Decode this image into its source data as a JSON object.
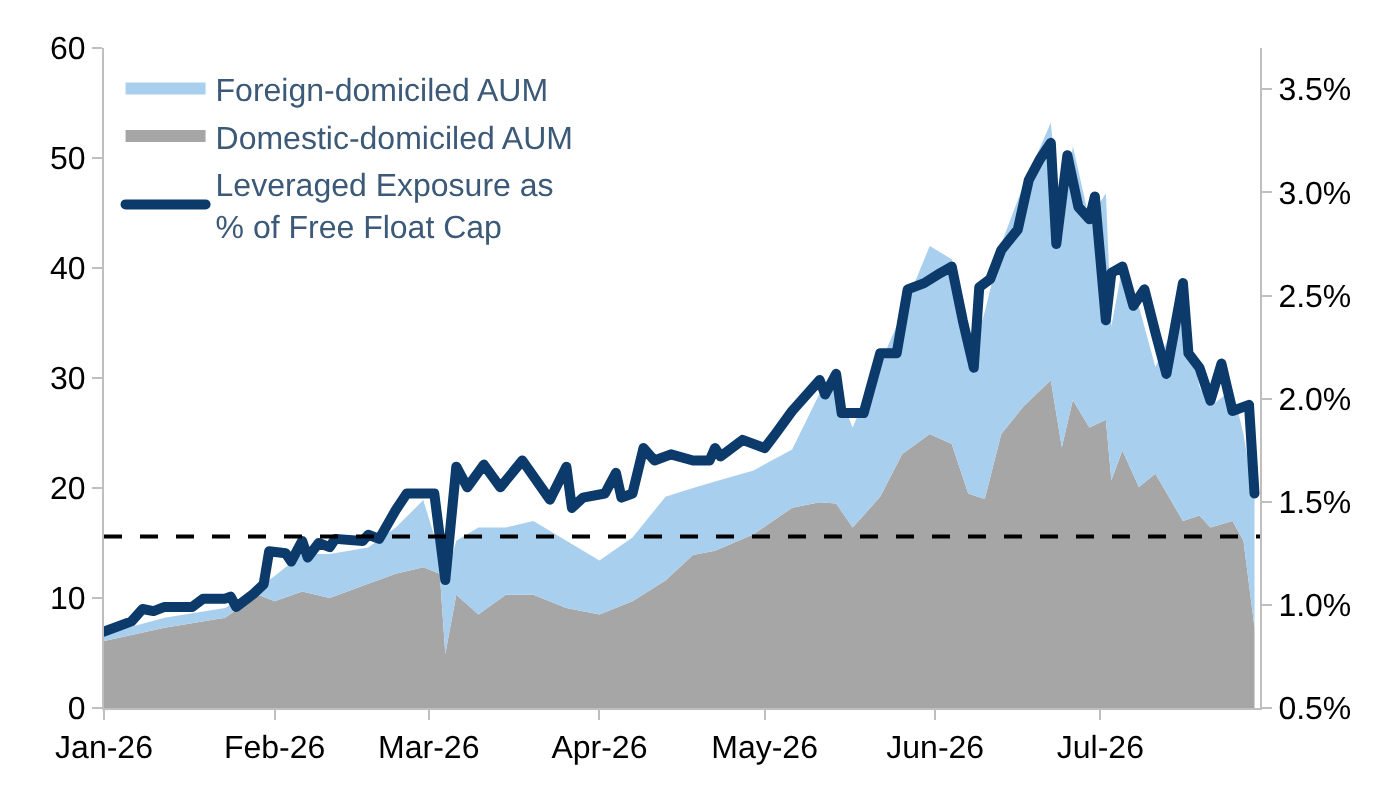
{
  "chart_data": {
    "type": "area",
    "stacked": true,
    "x": [
      "2026-01-01",
      "2026-01-12",
      "2026-01-23",
      "2026-01-29",
      "2026-02-01",
      "2026-02-06",
      "2026-02-11",
      "2026-02-18",
      "2026-02-23",
      "2026-02-28",
      "2026-03-03",
      "2026-03-04",
      "2026-03-06",
      "2026-03-10",
      "2026-03-15",
      "2026-03-20",
      "2026-03-26",
      "2026-04-01",
      "2026-04-07",
      "2026-04-13",
      "2026-04-18",
      "2026-04-22",
      "2026-04-29",
      "2026-05-06",
      "2026-05-11",
      "2026-05-14",
      "2026-05-17",
      "2026-05-22",
      "2026-05-26",
      "2026-05-31",
      "2026-06-04",
      "2026-06-07",
      "2026-06-10",
      "2026-06-13",
      "2026-06-17",
      "2026-06-22",
      "2026-06-24",
      "2026-06-26",
      "2026-06-29",
      "2026-07-02",
      "2026-07-03",
      "2026-07-05",
      "2026-07-08",
      "2026-07-11",
      "2026-07-16",
      "2026-07-19",
      "2026-07-21",
      "2026-07-25",
      "2026-07-27",
      "2026-07-29"
    ],
    "series": [
      {
        "name": "Domestic-domiciled AUM",
        "color": "#a6a6a6",
        "values": [
          6.1,
          7.3,
          8.2,
          10.3,
          9.7,
          10.6,
          10.0,
          11.3,
          12.2,
          12.8,
          12.2,
          4.9,
          10.3,
          8.5,
          10.3,
          10.3,
          9.1,
          8.5,
          9.7,
          11.6,
          13.9,
          14.3,
          15.8,
          18.2,
          18.7,
          18.6,
          16.4,
          19.2,
          23.1,
          24.9,
          24.0,
          19.5,
          19.0,
          24.9,
          27.4,
          29.8,
          23.7,
          28.0,
          25.5,
          26.2,
          20.7,
          23.4,
          20.1,
          21.3,
          17.0,
          17.5,
          16.4,
          17.0,
          15.2,
          7.3
        ]
      },
      {
        "name": "Foreign-domiciled AUM",
        "color": "#a9cfee",
        "values": [
          0.6,
          0.9,
          0.9,
          0.6,
          2.3,
          3.4,
          4.0,
          3.3,
          4.2,
          6.1,
          1.8,
          6.7,
          4.9,
          7.9,
          6.1,
          6.7,
          6.1,
          4.9,
          5.8,
          7.6,
          6.1,
          6.3,
          5.8,
          5.3,
          9.9,
          10.6,
          9.1,
          12.1,
          12.8,
          17.1,
          16.8,
          11.5,
          17.0,
          17.3,
          20.1,
          23.4,
          18.9,
          23.1,
          18.9,
          20.6,
          14.0,
          16.7,
          16.4,
          9.7,
          19.5,
          11.7,
          11.0,
          12.0,
          9.7,
          11.6
        ]
      },
      {
        "name": "Leveraged Exposure as\n% of Free Float Cap",
        "type": "line",
        "axis": "y2",
        "color": "#0b3a6b",
        "x": [
          "2026-01-01",
          "2026-01-06",
          "2026-01-08",
          "2026-01-10",
          "2026-01-12",
          "2026-01-17",
          "2026-01-19",
          "2026-01-23",
          "2026-01-24",
          "2026-01-25",
          "2026-01-28",
          "2026-01-30",
          "2026-01-31",
          "2026-02-03",
          "2026-02-04",
          "2026-02-06",
          "2026-02-07",
          "2026-02-09",
          "2026-02-11",
          "2026-02-12",
          "2026-02-17",
          "2026-02-18",
          "2026-02-20",
          "2026-02-23",
          "2026-02-25",
          "2026-02-28",
          "2026-03-02",
          "2026-03-04",
          "2026-03-06",
          "2026-03-08",
          "2026-03-11",
          "2026-03-14",
          "2026-03-18",
          "2026-03-23",
          "2026-03-26",
          "2026-03-27",
          "2026-03-29",
          "2026-04-02",
          "2026-04-04",
          "2026-04-05",
          "2026-04-07",
          "2026-04-09",
          "2026-04-11",
          "2026-04-14",
          "2026-04-18",
          "2026-04-21",
          "2026-04-22",
          "2026-04-23",
          "2026-04-27",
          "2026-05-01",
          "2026-05-03",
          "2026-05-06",
          "2026-05-11",
          "2026-05-12",
          "2026-05-14",
          "2026-05-15",
          "2026-05-19",
          "2026-05-22",
          "2026-05-25",
          "2026-05-27",
          "2026-05-30",
          "2026-06-02",
          "2026-06-04",
          "2026-06-06",
          "2026-06-08",
          "2026-06-09",
          "2026-06-11",
          "2026-06-13",
          "2026-06-16",
          "2026-06-18",
          "2026-06-20",
          "2026-06-22",
          "2026-06-23",
          "2026-06-25",
          "2026-06-27",
          "2026-06-29",
          "2026-06-30",
          "2026-07-02",
          "2026-07-03",
          "2026-07-05",
          "2026-07-07",
          "2026-07-09",
          "2026-07-11",
          "2026-07-13",
          "2026-07-16",
          "2026-07-17",
          "2026-07-19",
          "2026-07-21",
          "2026-07-23",
          "2026-07-25",
          "2026-07-28",
          "2026-07-29"
        ],
        "values": [
          0.87,
          0.92,
          0.98,
          0.97,
          0.99,
          0.99,
          1.03,
          1.03,
          1.04,
          0.99,
          1.05,
          1.1,
          1.26,
          1.25,
          1.21,
          1.31,
          1.23,
          1.3,
          1.28,
          1.32,
          1.31,
          1.34,
          1.32,
          1.46,
          1.54,
          1.54,
          1.54,
          1.12,
          1.67,
          1.57,
          1.68,
          1.57,
          1.7,
          1.51,
          1.67,
          1.47,
          1.52,
          1.54,
          1.64,
          1.52,
          1.54,
          1.76,
          1.7,
          1.73,
          1.7,
          1.7,
          1.76,
          1.72,
          1.8,
          1.76,
          1.83,
          1.94,
          2.09,
          2.02,
          2.12,
          1.93,
          1.93,
          2.22,
          2.22,
          2.53,
          2.56,
          2.61,
          2.64,
          2.38,
          2.15,
          2.54,
          2.58,
          2.72,
          2.82,
          3.06,
          3.16,
          3.24,
          2.75,
          3.18,
          2.93,
          2.87,
          2.98,
          2.38,
          2.61,
          2.64,
          2.45,
          2.53,
          2.32,
          2.12,
          2.56,
          2.22,
          2.15,
          1.99,
          2.17,
          1.94,
          1.97,
          1.54
        ]
      }
    ],
    "xlim": [
      "2026-01-01",
      "2026-07-30"
    ],
    "xticks": [
      {
        "value": "2026-01-01",
        "label": "Jan-26"
      },
      {
        "value": "2026-02-01",
        "label": "Feb-26"
      },
      {
        "value": "2026-03-01",
        "label": "Mar-26"
      },
      {
        "value": "2026-04-01",
        "label": "Apr-26"
      },
      {
        "value": "2026-05-01",
        "label": "May-26"
      },
      {
        "value": "2026-06-01",
        "label": "Jun-26"
      },
      {
        "value": "2026-07-01",
        "label": "Jul-26"
      }
    ],
    "ylim": [
      0,
      60
    ],
    "yticks": [
      0,
      10,
      20,
      30,
      40,
      50,
      60
    ],
    "y2lim": [
      0.5,
      3.7
    ],
    "y2ticks": [
      {
        "value": 0.5,
        "label": "0.5%"
      },
      {
        "value": 1.0,
        "label": "1.0%"
      },
      {
        "value": 1.5,
        "label": "1.5%"
      },
      {
        "value": 2.0,
        "label": "2.0%"
      },
      {
        "value": 2.5,
        "label": "2.5%"
      },
      {
        "value": 3.0,
        "label": "3.0%"
      },
      {
        "value": 3.5,
        "label": "3.5%"
      }
    ],
    "ref_lines": [
      {
        "axis": "y",
        "value": 15.6,
        "color": "#000000",
        "line_style": "dashed"
      }
    ],
    "legend": "top left",
    "marker": "none",
    "line_style": "solid"
  }
}
